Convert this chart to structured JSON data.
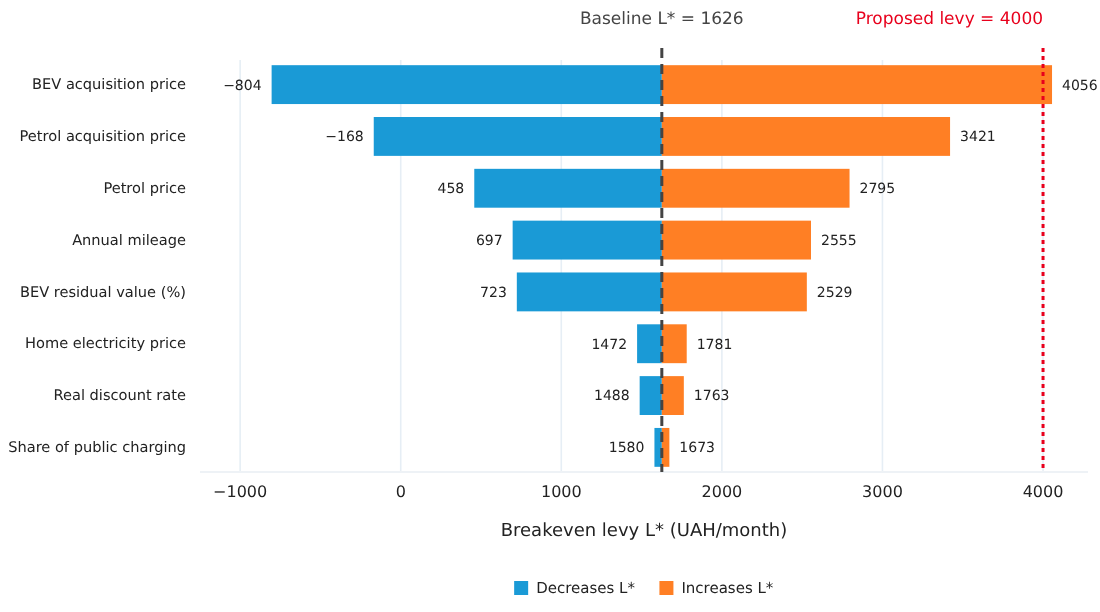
{
  "chart_data": {
    "type": "bar",
    "orientation": "horizontal",
    "xlabel": "Breakeven levy L* (UAH/month)",
    "categories": [
      "BEV acquisition price",
      "Petrol acquisition price",
      "Petrol price",
      "Annual mileage",
      "BEV residual value (%)",
      "Home electricity price",
      "Real discount rate",
      "Share of public charging"
    ],
    "series": [
      {
        "name": "Decreases L*",
        "color": "#1a9ad6",
        "base": [
          -804,
          -168,
          458,
          697,
          723,
          1472,
          1488,
          1580
        ],
        "values": [
          2430,
          1794,
          1168,
          929,
          903,
          154,
          138,
          46
        ]
      },
      {
        "name": "Increases L*",
        "color": "#ff7f24",
        "base": [
          1626,
          1626,
          1626,
          1626,
          1626,
          1626,
          1626,
          1626
        ],
        "values": [
          2430,
          1795,
          1169,
          929,
          903,
          155,
          137,
          47
        ]
      }
    ],
    "annotations": [
      {
        "text": "−804",
        "x": -804,
        "y": "BEV acquisition price"
      },
      {
        "text": "−168",
        "x": -168,
        "y": "Petrol acquisition price"
      },
      {
        "text": "458",
        "x": 458,
        "y": "Petrol price"
      },
      {
        "text": "697",
        "x": 697,
        "y": "Annual mileage"
      },
      {
        "text": "723",
        "x": 723,
        "y": "BEV residual value (%)"
      },
      {
        "text": "1472",
        "x": 1472,
        "y": "Home electricity price"
      },
      {
        "text": "1488",
        "x": 1488,
        "y": "Real discount rate"
      },
      {
        "text": "1580",
        "x": 1580,
        "y": "Share of public charging"
      },
      {
        "text": "4056",
        "x": 4056,
        "y": "BEV acquisition price"
      },
      {
        "text": "3421",
        "x": 3421,
        "y": "Petrol acquisition price"
      },
      {
        "text": "2795",
        "x": 2795,
        "y": "Petrol price"
      },
      {
        "text": "2555",
        "x": 2555,
        "y": "Annual mileage"
      },
      {
        "text": "2529",
        "x": 2529,
        "y": "BEV residual value (%)"
      },
      {
        "text": "1781",
        "x": 1781,
        "y": "Home electricity price"
      },
      {
        "text": "1763",
        "x": 1763,
        "y": "Real discount rate"
      },
      {
        "text": "1673",
        "x": 1673,
        "y": "Share of public charging"
      }
    ],
    "xlim": [
      -1250,
      4280
    ],
    "xticks": [
      {
        "value": -1000,
        "label": "−1000"
      },
      0,
      1000,
      2000,
      3000,
      4000
    ],
    "grid": "x",
    "legend": "bottom",
    "ref_lines": [
      {
        "axis": "x",
        "value": 1626,
        "label": "Baseline L* = 1626",
        "color": "#444444",
        "line_style": "dashed"
      },
      {
        "axis": "x",
        "value": 4000,
        "label": "Proposed levy = 4000",
        "color": "#e8001c",
        "line_style": "dotted"
      }
    ]
  }
}
